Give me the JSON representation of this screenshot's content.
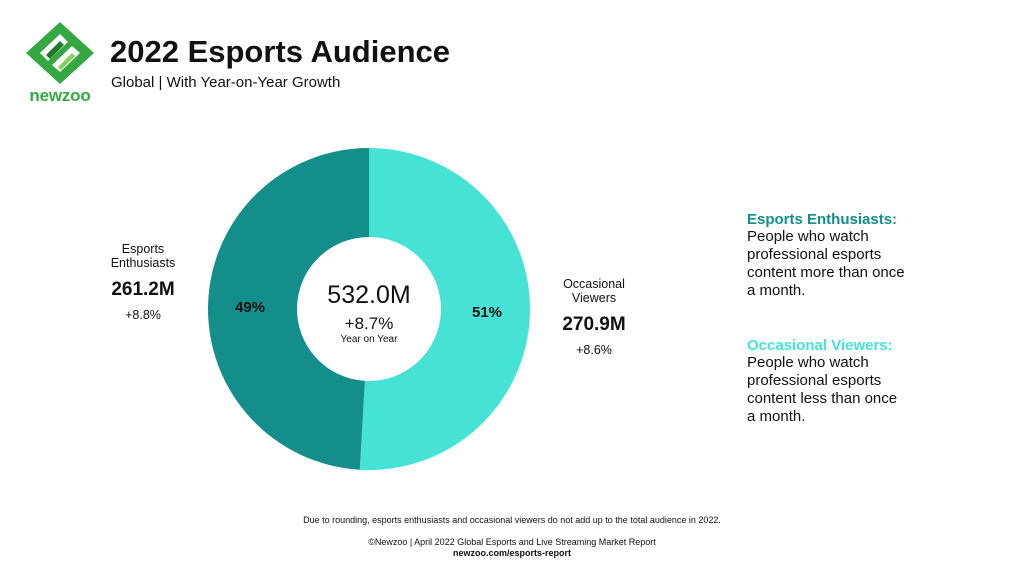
{
  "brand": {
    "name": "newzoo",
    "color": "#36a843",
    "dark": "#1f7a2c",
    "light": "#7fd35a"
  },
  "header": {
    "title": "2022 Esports Audience",
    "subtitle": "Global | With Year-on-Year Growth"
  },
  "chart_data": {
    "type": "pie",
    "title": "2022 Esports Audience",
    "subtitle": "Global | With Year-on-Year Growth",
    "variant": "donut",
    "total": {
      "value": "532.0M",
      "growth": "+8.7%",
      "caption": "Year on Year"
    },
    "slices": [
      {
        "name": "Occasional Viewers",
        "label_lines": [
          "Occasional",
          "Viewers"
        ],
        "value": 270.9,
        "value_label": "270.9M",
        "percent": 51,
        "percent_label": "51%",
        "growth": "+8.6%",
        "color": "#46e2d5"
      },
      {
        "name": "Esports Enthusiasts",
        "label_lines": [
          "Esports",
          "Enthusiasts"
        ],
        "value": 261.2,
        "value_label": "261.2M",
        "percent": 49,
        "percent_label": "49%",
        "growth": "+8.8%",
        "color": "#138e8a"
      }
    ]
  },
  "legend": [
    {
      "title": "Esports Enthusiasts:",
      "title_color": "#138e8a",
      "lines": [
        "People who watch",
        "professional esports",
        "content more than once",
        "a month."
      ]
    },
    {
      "title": "Occasional Viewers:",
      "title_color": "#46e2d5",
      "lines": [
        "People who watch",
        "professional esports",
        "content less than once",
        "a month."
      ]
    }
  ],
  "footer": {
    "note": "Due to rounding, esports enthusiasts and occasional viewers do not add up to the total audience in 2022.",
    "source": "©Newzoo | April 2022 Global Esports and Live Streaming Market Report",
    "url": "newzoo.com/esports-report"
  }
}
